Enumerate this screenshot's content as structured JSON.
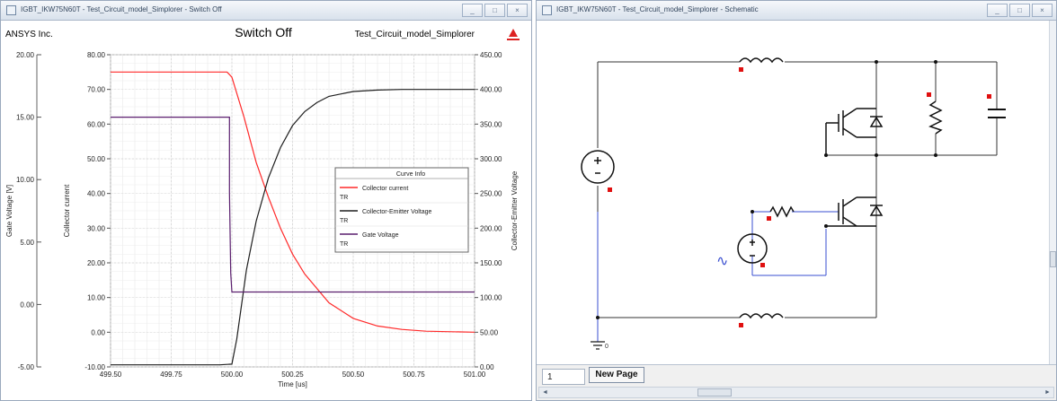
{
  "left_window": {
    "title": "IGBT_IKW75N60T - Test_Circuit_model_Simplorer - Switch Off",
    "buttons": [
      "_",
      "□",
      "×"
    ],
    "header_left": "ANSYS Inc.",
    "header_right": "Test_Circuit_model_Simplorer"
  },
  "right_window": {
    "title": "IGBT_IKW75N60T - Test_Circuit_model_Simplorer - Schematic",
    "buttons": [
      "_",
      "□",
      "×"
    ],
    "page_number": "1",
    "page_tab": "New Page",
    "ground_label": "0",
    "source_symbol": "∿"
  },
  "chart_data": {
    "type": "line",
    "title": "Switch Off",
    "xlabel": "Time [us]",
    "x_ticks": [
      "499.50",
      "499.75",
      "500.00",
      "500.25",
      "500.50",
      "500.75",
      "501.00"
    ],
    "xlim": [
      499.5,
      501.0
    ],
    "grid": true,
    "legend_title": "Curve Info",
    "legend_placement": "center-right",
    "axes": {
      "gate": {
        "label": "Gate Voltage [V]",
        "lim": [
          -5.0,
          20.0
        ],
        "ticks": [
          "-5.00",
          "0.00",
          "5.00",
          "10.00",
          "15.00",
          "20.00"
        ]
      },
      "current": {
        "label": "Collector current",
        "lim": [
          -10.0,
          80.0
        ],
        "ticks": [
          "-10.00",
          "0.00",
          "10.00",
          "20.00",
          "30.00",
          "40.00",
          "50.00",
          "60.00",
          "70.00",
          "80.00"
        ]
      },
      "voltage": {
        "label": "Collector-Emitter Voltage",
        "lim": [
          0.0,
          450.0
        ],
        "ticks": [
          "0.00",
          "50.00",
          "100.00",
          "150.00",
          "200.00",
          "250.00",
          "300.00",
          "350.00",
          "400.00",
          "450.00"
        ]
      }
    },
    "series": [
      {
        "name": "Collector current",
        "sub": "TR",
        "color": "#ff2a2a",
        "axis": "current",
        "x": [
          499.5,
          499.9,
          499.98,
          500.0,
          500.05,
          500.1,
          500.15,
          500.2,
          500.25,
          500.3,
          500.4,
          500.5,
          500.6,
          500.7,
          500.8,
          501.0
        ],
        "y": [
          75.0,
          75.0,
          75.0,
          73.5,
          62.0,
          49.0,
          39.0,
          30.0,
          22.5,
          16.8,
          8.5,
          4.0,
          1.8,
          0.8,
          0.3,
          0.0
        ]
      },
      {
        "name": "Collector-Emitter Voltage",
        "sub": "TR",
        "color": "#1e1e1e",
        "axis": "voltage",
        "x": [
          499.5,
          499.95,
          500.0,
          500.02,
          500.06,
          500.1,
          500.15,
          500.2,
          500.25,
          500.3,
          500.35,
          500.4,
          500.5,
          500.6,
          500.7,
          501.0
        ],
        "y": [
          3.0,
          3.0,
          4.0,
          40.0,
          140.0,
          210.0,
          272.0,
          316.0,
          348.0,
          368.0,
          381.0,
          390.0,
          397.0,
          399.0,
          400.0,
          400.0
        ]
      },
      {
        "name": "Gate Voltage",
        "sub": "TR",
        "color": "#5a1e6e",
        "axis": "gate",
        "x": [
          499.5,
          499.99,
          499.99,
          499.995,
          500.0,
          500.02,
          501.0
        ],
        "y": [
          15.0,
          15.0,
          9.0,
          2.5,
          1.0,
          1.0,
          1.0
        ]
      }
    ]
  }
}
